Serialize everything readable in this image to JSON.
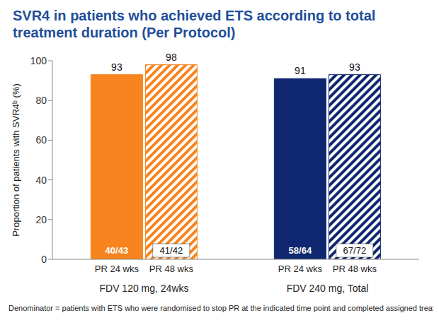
{
  "chart_data": {
    "type": "bar",
    "title": "SVR4 in patients who achieved ETS according to total treatment duration (Per Protocol)",
    "y_label": "Proportion of patients with SVR4ᵇ (%)",
    "categories": [
      "PR 24 wks",
      "PR 48 wks",
      "PR 24 wks",
      "PR 48 wks"
    ],
    "group_labels": [
      "FDV 120 mg, 24wks",
      "FDV 240 mg, Total"
    ],
    "values": [
      93,
      98,
      91,
      93
    ],
    "annotations": [
      "40/43",
      "41/42",
      "58/64",
      "67/72"
    ],
    "colors": [
      "#f7841e",
      "#f7841e",
      "#0e2770",
      "#0e2770"
    ],
    "ylim": [
      0,
      100
    ],
    "yticks": [
      0,
      20,
      40,
      60,
      80,
      100
    ],
    "data_labels": true,
    "footnote": "Denominator = patients with ETS who were randomised to stop PR at the indicated time point and completed assigned treatment"
  }
}
